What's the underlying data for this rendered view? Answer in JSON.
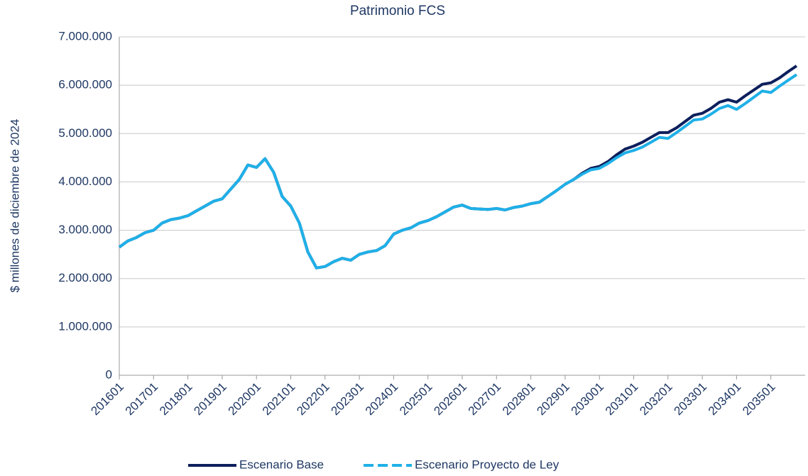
{
  "chart_data": {
    "type": "line",
    "title": "Patrimonio FCS",
    "y_label": "$ millones de diciembre de 2024",
    "categories": [
      "201601",
      null,
      null,
      null,
      "201701",
      null,
      null,
      null,
      "201801",
      null,
      null,
      null,
      "201901",
      null,
      null,
      null,
      "202001",
      null,
      null,
      null,
      "202101",
      null,
      null,
      null,
      "202201",
      null,
      null,
      null,
      "202301",
      null,
      null,
      null,
      "202401",
      null,
      null,
      null,
      "202501",
      null,
      null,
      null,
      "202601",
      null,
      null,
      null,
      "202701",
      null,
      null,
      null,
      "202801",
      null,
      null,
      null,
      "202901",
      null,
      null,
      null,
      "203001",
      null,
      null,
      null,
      "203101",
      null,
      null,
      null,
      "203201",
      null,
      null,
      null,
      "203301",
      null,
      null,
      null,
      "203401",
      null,
      null,
      null,
      "203501",
      null,
      null,
      null
    ],
    "series": [
      {
        "name": "Escenario Base",
        "color": "#0d1f5c",
        "legend_dash": false,
        "values": [
          2650000,
          2780000,
          2850000,
          2950000,
          3000000,
          3150000,
          3220000,
          3250000,
          3300000,
          3400000,
          3500000,
          3600000,
          3650000,
          3850000,
          4050000,
          4350000,
          4300000,
          4480000,
          4200000,
          3700000,
          3500000,
          3150000,
          2550000,
          2220000,
          2250000,
          2350000,
          2420000,
          2380000,
          2500000,
          2550000,
          2580000,
          2680000,
          2920000,
          3000000,
          3050000,
          3150000,
          3200000,
          3280000,
          3380000,
          3480000,
          3520000,
          3450000,
          3440000,
          3430000,
          3450000,
          3420000,
          3470000,
          3500000,
          3550000,
          3580000,
          3700000,
          3820000,
          3950000,
          4050000,
          4180000,
          4280000,
          4320000,
          4420000,
          4560000,
          4680000,
          4740000,
          4820000,
          4920000,
          5020000,
          5020000,
          5120000,
          5250000,
          5380000,
          5420000,
          5520000,
          5650000,
          5700000,
          5650000,
          5780000,
          5900000,
          6020000,
          6050000,
          6150000,
          6280000,
          6400000
        ]
      },
      {
        "name": "Escenario Proyecto de Ley",
        "color": "#1fb0e8",
        "legend_dash": true,
        "values": [
          2650000,
          2780000,
          2850000,
          2950000,
          3000000,
          3150000,
          3220000,
          3250000,
          3300000,
          3400000,
          3500000,
          3600000,
          3650000,
          3850000,
          4050000,
          4350000,
          4300000,
          4480000,
          4200000,
          3700000,
          3500000,
          3150000,
          2550000,
          2220000,
          2250000,
          2350000,
          2420000,
          2380000,
          2500000,
          2550000,
          2580000,
          2680000,
          2920000,
          3000000,
          3050000,
          3150000,
          3200000,
          3280000,
          3380000,
          3480000,
          3520000,
          3450000,
          3440000,
          3430000,
          3450000,
          3420000,
          3470000,
          3500000,
          3550000,
          3580000,
          3700000,
          3820000,
          3950000,
          4050000,
          4160000,
          4250000,
          4280000,
          4380000,
          4500000,
          4600000,
          4650000,
          4720000,
          4820000,
          4920000,
          4900000,
          5020000,
          5150000,
          5280000,
          5300000,
          5400000,
          5520000,
          5580000,
          5500000,
          5620000,
          5750000,
          5880000,
          5850000,
          5980000,
          6100000,
          6220000
        ]
      }
    ],
    "ylim": [
      0,
      7000000
    ],
    "yticks": [
      0,
      {
        "value": 1000000,
        "label": "1.000.000"
      },
      {
        "value": 2000000,
        "label": "2.000.000"
      },
      {
        "value": 3000000,
        "label": "3.000.000"
      },
      {
        "value": 4000000,
        "label": "4.000.000"
      },
      {
        "value": 5000000,
        "label": "5.000.000"
      },
      {
        "value": 6000000,
        "label": "6.000.000"
      },
      {
        "value": 7000000,
        "label": "7.000.000"
      }
    ],
    "grid": true,
    "legend": "bottom"
  }
}
